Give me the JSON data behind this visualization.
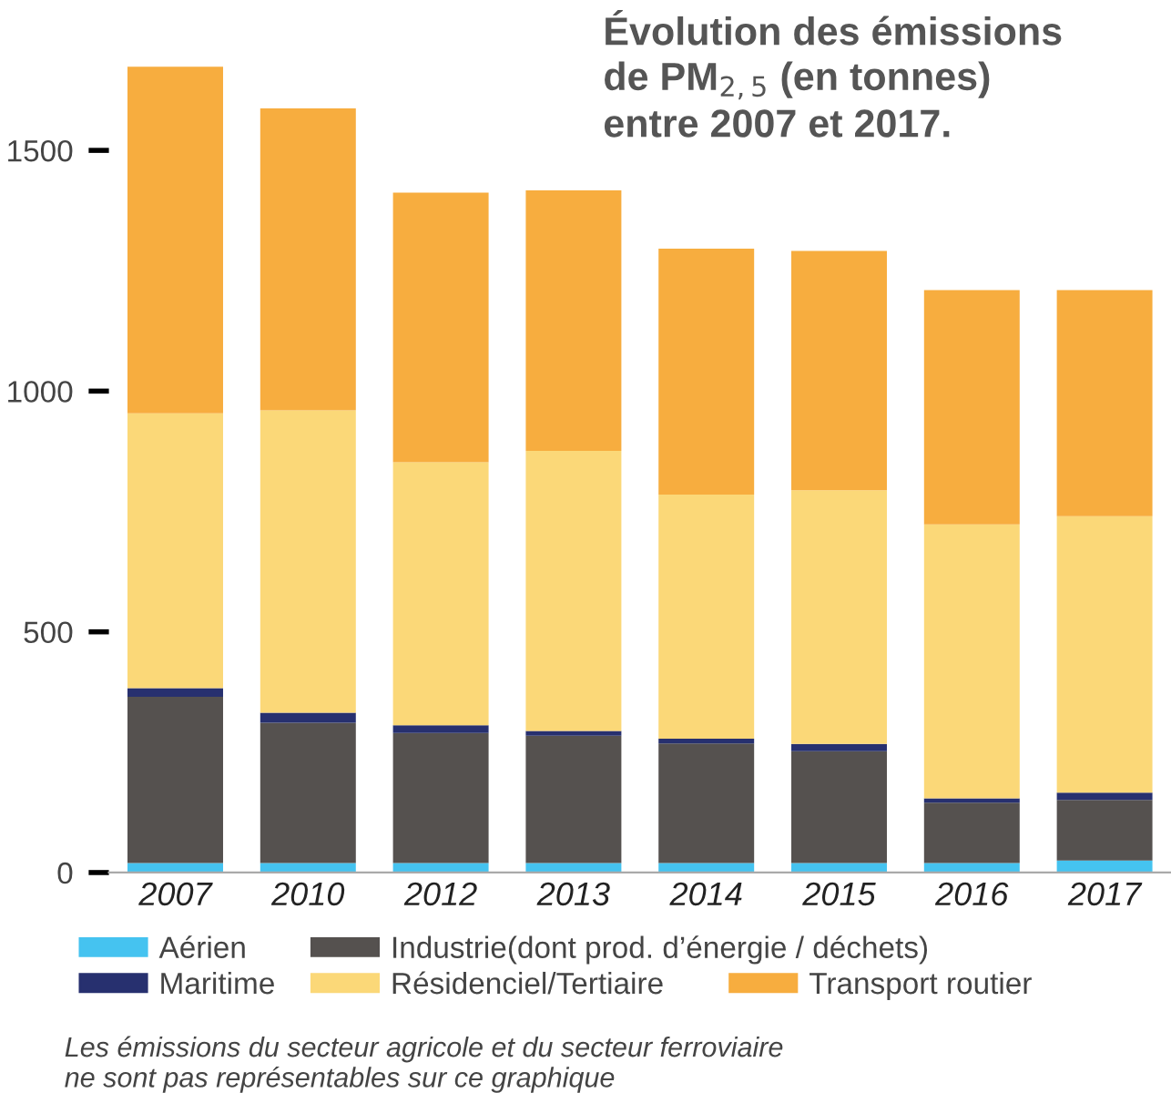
{
  "chart_data": {
    "type": "bar",
    "stacked": true,
    "title": "Évolution des émissions\nde PM$_{2,5}$ (en tonnes)\nentre 2007 et 2017.",
    "categories": [
      "2007",
      "2010",
      "2012",
      "2013",
      "2014",
      "2015",
      "2016",
      "2017"
    ],
    "series": [
      {
        "name": "Aérien",
        "color": "#45c3f0",
        "values": [
          20,
          20,
          20,
          20,
          20,
          20,
          20,
          25
        ]
      },
      {
        "name": "Industrie(dont prod. d’énergie / déchets)",
        "color": "#55514f",
        "values": [
          345,
          291,
          270,
          264,
          248,
          232,
          125,
          126
        ]
      },
      {
        "name": "Maritime",
        "color": "#27306f",
        "values": [
          18,
          21,
          16,
          10,
          10,
          15,
          9,
          15
        ]
      },
      {
        "name": "Résidenciel/Tertiaire",
        "color": "#fbd878",
        "values": [
          571,
          628,
          546,
          582,
          507,
          527,
          569,
          574
        ]
      },
      {
        "name": "Transport routier",
        "color": "#f7ad3f",
        "values": [
          720,
          627,
          560,
          541,
          511,
          497,
          487,
          470
        ]
      }
    ],
    "ylim": [
      0,
      1680
    ],
    "yticks": [
      0,
      500,
      1000,
      1500
    ],
    "grid": false,
    "legend": "bottom",
    "annotations": [
      "Les émissions du secteur agricole et du secteur ferroviaire\nne sont pas représentables sur ce graphique"
    ]
  }
}
